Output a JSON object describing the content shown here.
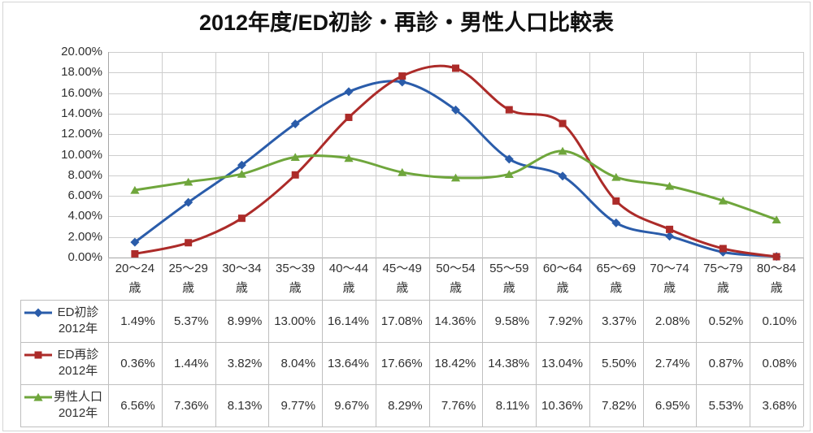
{
  "title": "2012年度/ED初診・再診・男性人口比較表",
  "chart_data": {
    "type": "line",
    "title": "2012年度/ED初診・再診・男性人口比較表",
    "categories": [
      "20〜24",
      "25〜29",
      "30〜34",
      "35〜39",
      "40〜44",
      "45〜49",
      "50〜54",
      "55〜59",
      "60〜64",
      "65〜69",
      "70〜74",
      "75〜79",
      "80〜84"
    ],
    "category_unit": "歳",
    "xlabel": "",
    "ylabel": "",
    "ylim": [
      0,
      20
    ],
    "y_ticks": [
      "0.00%",
      "2.00%",
      "4.00%",
      "6.00%",
      "8.00%",
      "10.00%",
      "12.00%",
      "14.00%",
      "16.00%",
      "18.00%",
      "20.00%"
    ],
    "grid": true,
    "smooth_lines": true,
    "legend_position": "data-table-left-column",
    "value_format": "percent-2dp",
    "series": [
      {
        "key": "ed-first-visit-2012",
        "name": "ED初診",
        "year": "2012年",
        "marker": "diamond",
        "color": "#2A5CAA",
        "values": [
          1.49,
          5.37,
          8.99,
          13.0,
          16.14,
          17.08,
          14.36,
          9.58,
          7.92,
          3.37,
          2.08,
          0.52,
          0.1
        ]
      },
      {
        "key": "ed-repeat-visit-2012",
        "name": "ED再診",
        "year": "2012年",
        "marker": "square",
        "color": "#AC2B29",
        "values": [
          0.36,
          1.44,
          3.82,
          8.04,
          13.64,
          17.66,
          18.42,
          14.38,
          13.04,
          5.5,
          2.74,
          0.87,
          0.08
        ]
      },
      {
        "key": "male-population-2012",
        "name": "男性人口",
        "year": "2012年",
        "marker": "triangle",
        "color": "#6FA63C",
        "values": [
          6.56,
          7.36,
          8.13,
          9.77,
          9.67,
          8.29,
          7.76,
          8.11,
          10.36,
          7.82,
          6.95,
          5.53,
          3.68
        ]
      }
    ]
  },
  "colors": {
    "background": "#FFFFFF",
    "grid": "#CDCDCD",
    "axis": "#A6A6A6",
    "table_border": "#BFBFBF",
    "outer_border": "#D4D4D4",
    "text": "#303030",
    "title_text": "#111111"
  }
}
